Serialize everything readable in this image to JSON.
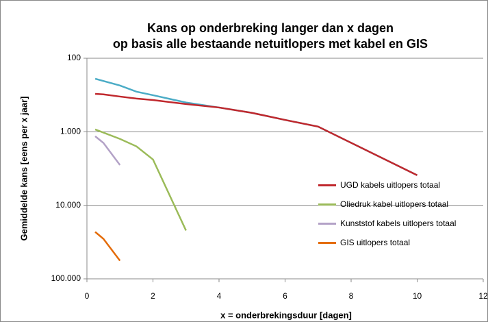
{
  "chart_data": {
    "type": "line",
    "title": "Kans op onderbreking langer dan x dagen",
    "subtitle": "op basis alle bestaande netuitlopers met kabel en GIS",
    "x_label": "x = onderbrekingsduur [dagen]",
    "y_label": "Gemiddelde kans  [eens per x jaar]",
    "xlim": [
      0,
      12
    ],
    "xticks": [
      0,
      2,
      4,
      6,
      8,
      10,
      12
    ],
    "ylim": [
      100,
      100000
    ],
    "y_log": true,
    "y_inverted": true,
    "grid": true,
    "legend": "right",
    "yticks": [
      100,
      {
        "value": 1000,
        "label": "1.000"
      },
      {
        "value": 10000,
        "label": "10.000"
      },
      {
        "value": 100000,
        "label": "100.000"
      }
    ],
    "series": [
      {
        "color": "#4bacc6",
        "x": [
          0.25,
          1,
          1.5,
          2,
          3,
          4,
          5,
          6,
          7,
          10
        ],
        "values": [
          190,
          235,
          285,
          318,
          400,
          468,
          553,
          690,
          850,
          3900
        ]
      },
      {
        "name": "UGD kabels uitlopers totaal",
        "color": "#c0282d",
        "x": [
          0.25,
          0.5,
          1,
          1.5,
          2,
          3,
          4,
          5,
          6,
          7,
          10
        ],
        "values": [
          305,
          310,
          332,
          354,
          370,
          420,
          468,
          553,
          690,
          850,
          3900
        ]
      },
      {
        "name": "Oliedruk kabel uitlopers totaal",
        "color": "#9bbb59",
        "x": [
          0.25,
          1,
          1.5,
          2,
          3
        ],
        "values": [
          930,
          1250,
          1580,
          2380,
          22000
        ]
      },
      {
        "name": "Kunststof kabels uitlopers totaal",
        "color": "#b3a2c7",
        "x": [
          0.25,
          0.5,
          1
        ],
        "values": [
          1150,
          1420,
          2830
        ]
      },
      {
        "name": "GIS uitlopers totaal",
        "color": "#e46c0a",
        "x": [
          0.25,
          0.5,
          1
        ],
        "values": [
          23000,
          28600,
          56600
        ]
      }
    ]
  }
}
